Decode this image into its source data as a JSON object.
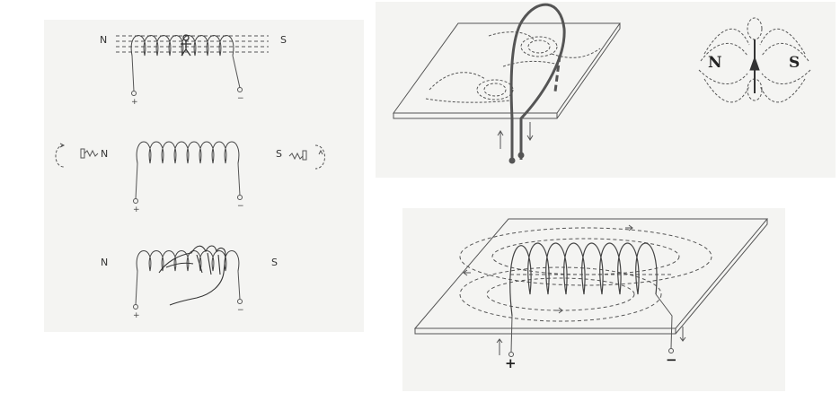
{
  "left_panel": {
    "row1": {
      "north": "N",
      "south": "S",
      "plus": "+",
      "minus": "−"
    },
    "row2": {
      "north": "N",
      "south": "S",
      "plus": "+",
      "minus": "−"
    },
    "row3": {
      "north": "N",
      "south": "S",
      "plus": "+",
      "minus": "−"
    }
  },
  "top_right_panel": {
    "compass_north": "N",
    "compass_south": "S"
  },
  "bottom_right_panel": {
    "plus": "+",
    "minus": "−"
  }
}
